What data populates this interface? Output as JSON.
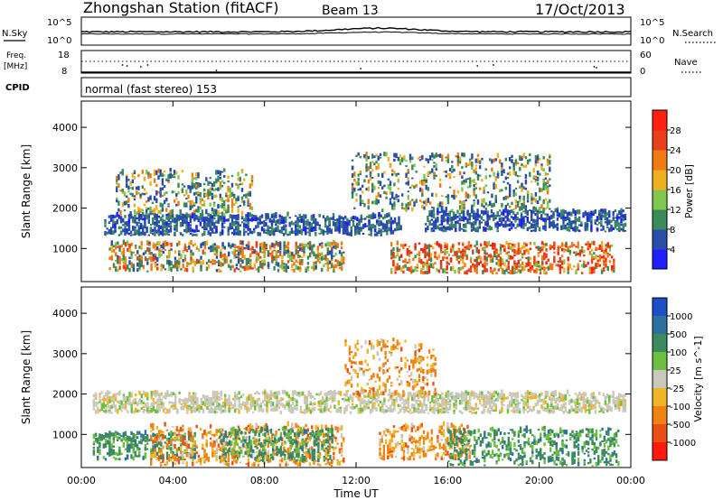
{
  "header": {
    "title": "Zhongshan Station (fitACF)",
    "beam": "Beam 13",
    "date": "17/Oct/2013"
  },
  "status_panels": {
    "noise": {
      "left_label": "N.Sky",
      "right_label": "N.Search",
      "left_ticks": [
        "10^5",
        "10^0"
      ],
      "right_ticks": [
        "10^5",
        "10^0"
      ]
    },
    "freq": {
      "left_label_lines": [
        "Freq.",
        "[MHz]"
      ],
      "left_ticks": [
        "18",
        "8"
      ],
      "right_label": "Nave",
      "right_ticks": [
        "60",
        "0"
      ]
    },
    "cpid": {
      "label": "CPID",
      "text": "normal (fast stereo) 153"
    }
  },
  "chart_data": [
    {
      "type": "heatmap",
      "name": "power",
      "ylabel": "Slant Range [km]",
      "ylim": [
        180,
        4650
      ],
      "y_ticks": [
        1000,
        2000,
        3000,
        4000
      ],
      "xlim": [
        0,
        24
      ],
      "colorbar": {
        "label": "Power [dB]",
        "tick_labels": [
          "4",
          "8",
          "12",
          "16",
          "20",
          "24",
          "28"
        ],
        "colors": [
          "#1f1fff",
          "#2a4ea8",
          "#3a8a5a",
          "#80c850",
          "#f0b020",
          "#f07a14",
          "#e84018",
          "#ff2010"
        ]
      },
      "echo_regions": [
        {
          "t": [
            1.2,
            11.5
          ],
          "r": [
            400,
            1100
          ],
          "level": "high"
        },
        {
          "t": [
            13.5,
            23.3
          ],
          "r": [
            350,
            1100
          ],
          "level": "very_high"
        },
        {
          "t": [
            1.0,
            14.0
          ],
          "r": [
            1300,
            1800
          ],
          "level": "low"
        },
        {
          "t": [
            15.0,
            23.8
          ],
          "r": [
            1400,
            1900
          ],
          "level": "low"
        },
        {
          "t": [
            1.5,
            7.5
          ],
          "r": [
            1800,
            2900
          ],
          "level": "mixed"
        },
        {
          "t": [
            11.8,
            20.5
          ],
          "r": [
            1900,
            3300
          ],
          "level": "mixed"
        }
      ]
    },
    {
      "type": "heatmap",
      "name": "velocity",
      "ylabel": "Slant Range [km]",
      "xlabel": "Time UT",
      "ylim": [
        180,
        4650
      ],
      "y_ticks": [
        1000,
        2000,
        3000,
        4000
      ],
      "xlim": [
        0,
        24
      ],
      "x_tick_labels": [
        "00:00",
        "04:00",
        "08:00",
        "12:00",
        "16:00",
        "20:00",
        "00:00"
      ],
      "colorbar": {
        "label": "Velocity [m s^-1]",
        "tick_labels": [
          "1000",
          "500",
          "100",
          "25",
          "-25",
          "-100",
          "-500",
          "-1000"
        ],
        "colors": [
          "#1e4ec8",
          "#2f6fa0",
          "#3c8a5e",
          "#6cc040",
          "#c8c8bc",
          "#f0b428",
          "#f08214",
          "#e85014",
          "#ff1a10"
        ]
      },
      "echo_regions": [
        {
          "t": [
            0.5,
            5.0
          ],
          "r": [
            350,
            1000
          ],
          "velocity": "100..500"
        },
        {
          "t": [
            3.0,
            11.5
          ],
          "r": [
            200,
            1200
          ],
          "velocity": "-500..-100"
        },
        {
          "t": [
            6.0,
            11.0
          ],
          "r": [
            300,
            1100
          ],
          "velocity": "100..500"
        },
        {
          "t": [
            0.5,
            23.8
          ],
          "r": [
            1500,
            2000
          ],
          "velocity": "-25..25"
        },
        {
          "t": [
            13.0,
            17.0
          ],
          "r": [
            350,
            1200
          ],
          "velocity": "-500..-100"
        },
        {
          "t": [
            16.0,
            23.5
          ],
          "r": [
            200,
            1100
          ],
          "velocity": "100..500"
        },
        {
          "t": [
            11.5,
            15.5
          ],
          "r": [
            1900,
            3300
          ],
          "velocity": "-500..-100"
        }
      ]
    }
  ]
}
